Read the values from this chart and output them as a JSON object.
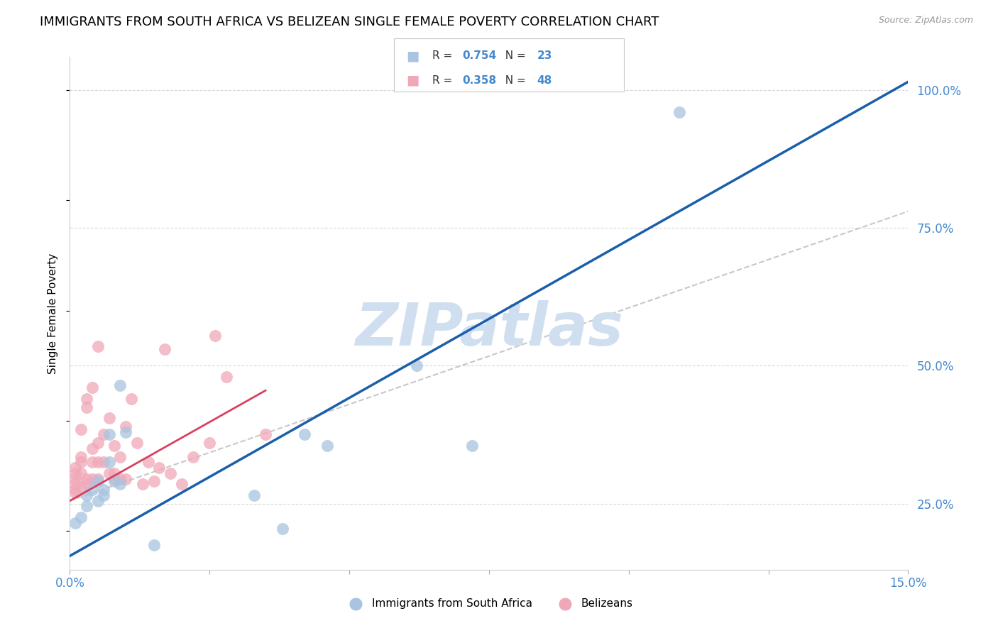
{
  "title": "IMMIGRANTS FROM SOUTH AFRICA VS BELIZEAN SINGLE FEMALE POVERTY CORRELATION CHART",
  "source": "Source: ZipAtlas.com",
  "xmin": 0.0,
  "xmax": 0.15,
  "ymin": 0.13,
  "ymax": 1.06,
  "ylabel": "Single Female Poverty",
  "legend_label1": "Immigrants from South Africa",
  "legend_label2": "Belizeans",
  "blue_scatter_x": [
    0.001,
    0.002,
    0.003,
    0.003,
    0.004,
    0.005,
    0.005,
    0.006,
    0.006,
    0.007,
    0.007,
    0.008,
    0.009,
    0.009,
    0.01,
    0.015,
    0.033,
    0.038,
    0.042,
    0.046,
    0.062,
    0.072,
    0.109
  ],
  "blue_scatter_y": [
    0.215,
    0.225,
    0.265,
    0.245,
    0.275,
    0.255,
    0.29,
    0.275,
    0.265,
    0.325,
    0.375,
    0.29,
    0.465,
    0.285,
    0.38,
    0.175,
    0.265,
    0.205,
    0.375,
    0.355,
    0.5,
    0.355,
    0.96
  ],
  "pink_scatter_x": [
    0.001,
    0.001,
    0.001,
    0.001,
    0.001,
    0.001,
    0.002,
    0.002,
    0.002,
    0.002,
    0.002,
    0.003,
    0.003,
    0.003,
    0.003,
    0.004,
    0.004,
    0.004,
    0.004,
    0.005,
    0.005,
    0.005,
    0.005,
    0.006,
    0.006,
    0.007,
    0.007,
    0.008,
    0.008,
    0.008,
    0.009,
    0.009,
    0.01,
    0.01,
    0.011,
    0.012,
    0.013,
    0.014,
    0.015,
    0.016,
    0.017,
    0.018,
    0.02,
    0.022,
    0.025,
    0.026,
    0.028,
    0.035
  ],
  "pink_scatter_y": [
    0.27,
    0.275,
    0.285,
    0.295,
    0.305,
    0.315,
    0.28,
    0.305,
    0.325,
    0.335,
    0.385,
    0.425,
    0.285,
    0.295,
    0.44,
    0.295,
    0.325,
    0.35,
    0.46,
    0.295,
    0.325,
    0.36,
    0.535,
    0.325,
    0.375,
    0.305,
    0.405,
    0.295,
    0.305,
    0.355,
    0.295,
    0.335,
    0.295,
    0.39,
    0.44,
    0.36,
    0.285,
    0.325,
    0.29,
    0.315,
    0.53,
    0.305,
    0.285,
    0.335,
    0.36,
    0.555,
    0.48,
    0.375
  ],
  "blue_color": "#a8c4e0",
  "blue_line_color": "#1a5faa",
  "pink_color": "#f0a8b8",
  "pink_line_color": "#d94060",
  "gray_dash_color": "#c8c8c8",
  "grid_color": "#d8d8d8",
  "watermark_color": "#d0dff0",
  "axis_label_color": "#4488cc",
  "text_color_dark": "#333333",
  "title_fontsize": 13,
  "tick_fontsize": 12,
  "ylabel_fontsize": 11,
  "blue_line_x0": 0.0,
  "blue_line_y0": 0.155,
  "blue_line_x1": 0.15,
  "blue_line_y1": 1.015,
  "pink_line_x0": 0.0,
  "pink_line_y0": 0.255,
  "pink_line_x1": 0.035,
  "pink_line_y1": 0.455,
  "gray_line_x0": 0.0,
  "gray_line_y0": 0.255,
  "gray_line_x1": 0.15,
  "gray_line_y1": 0.78
}
